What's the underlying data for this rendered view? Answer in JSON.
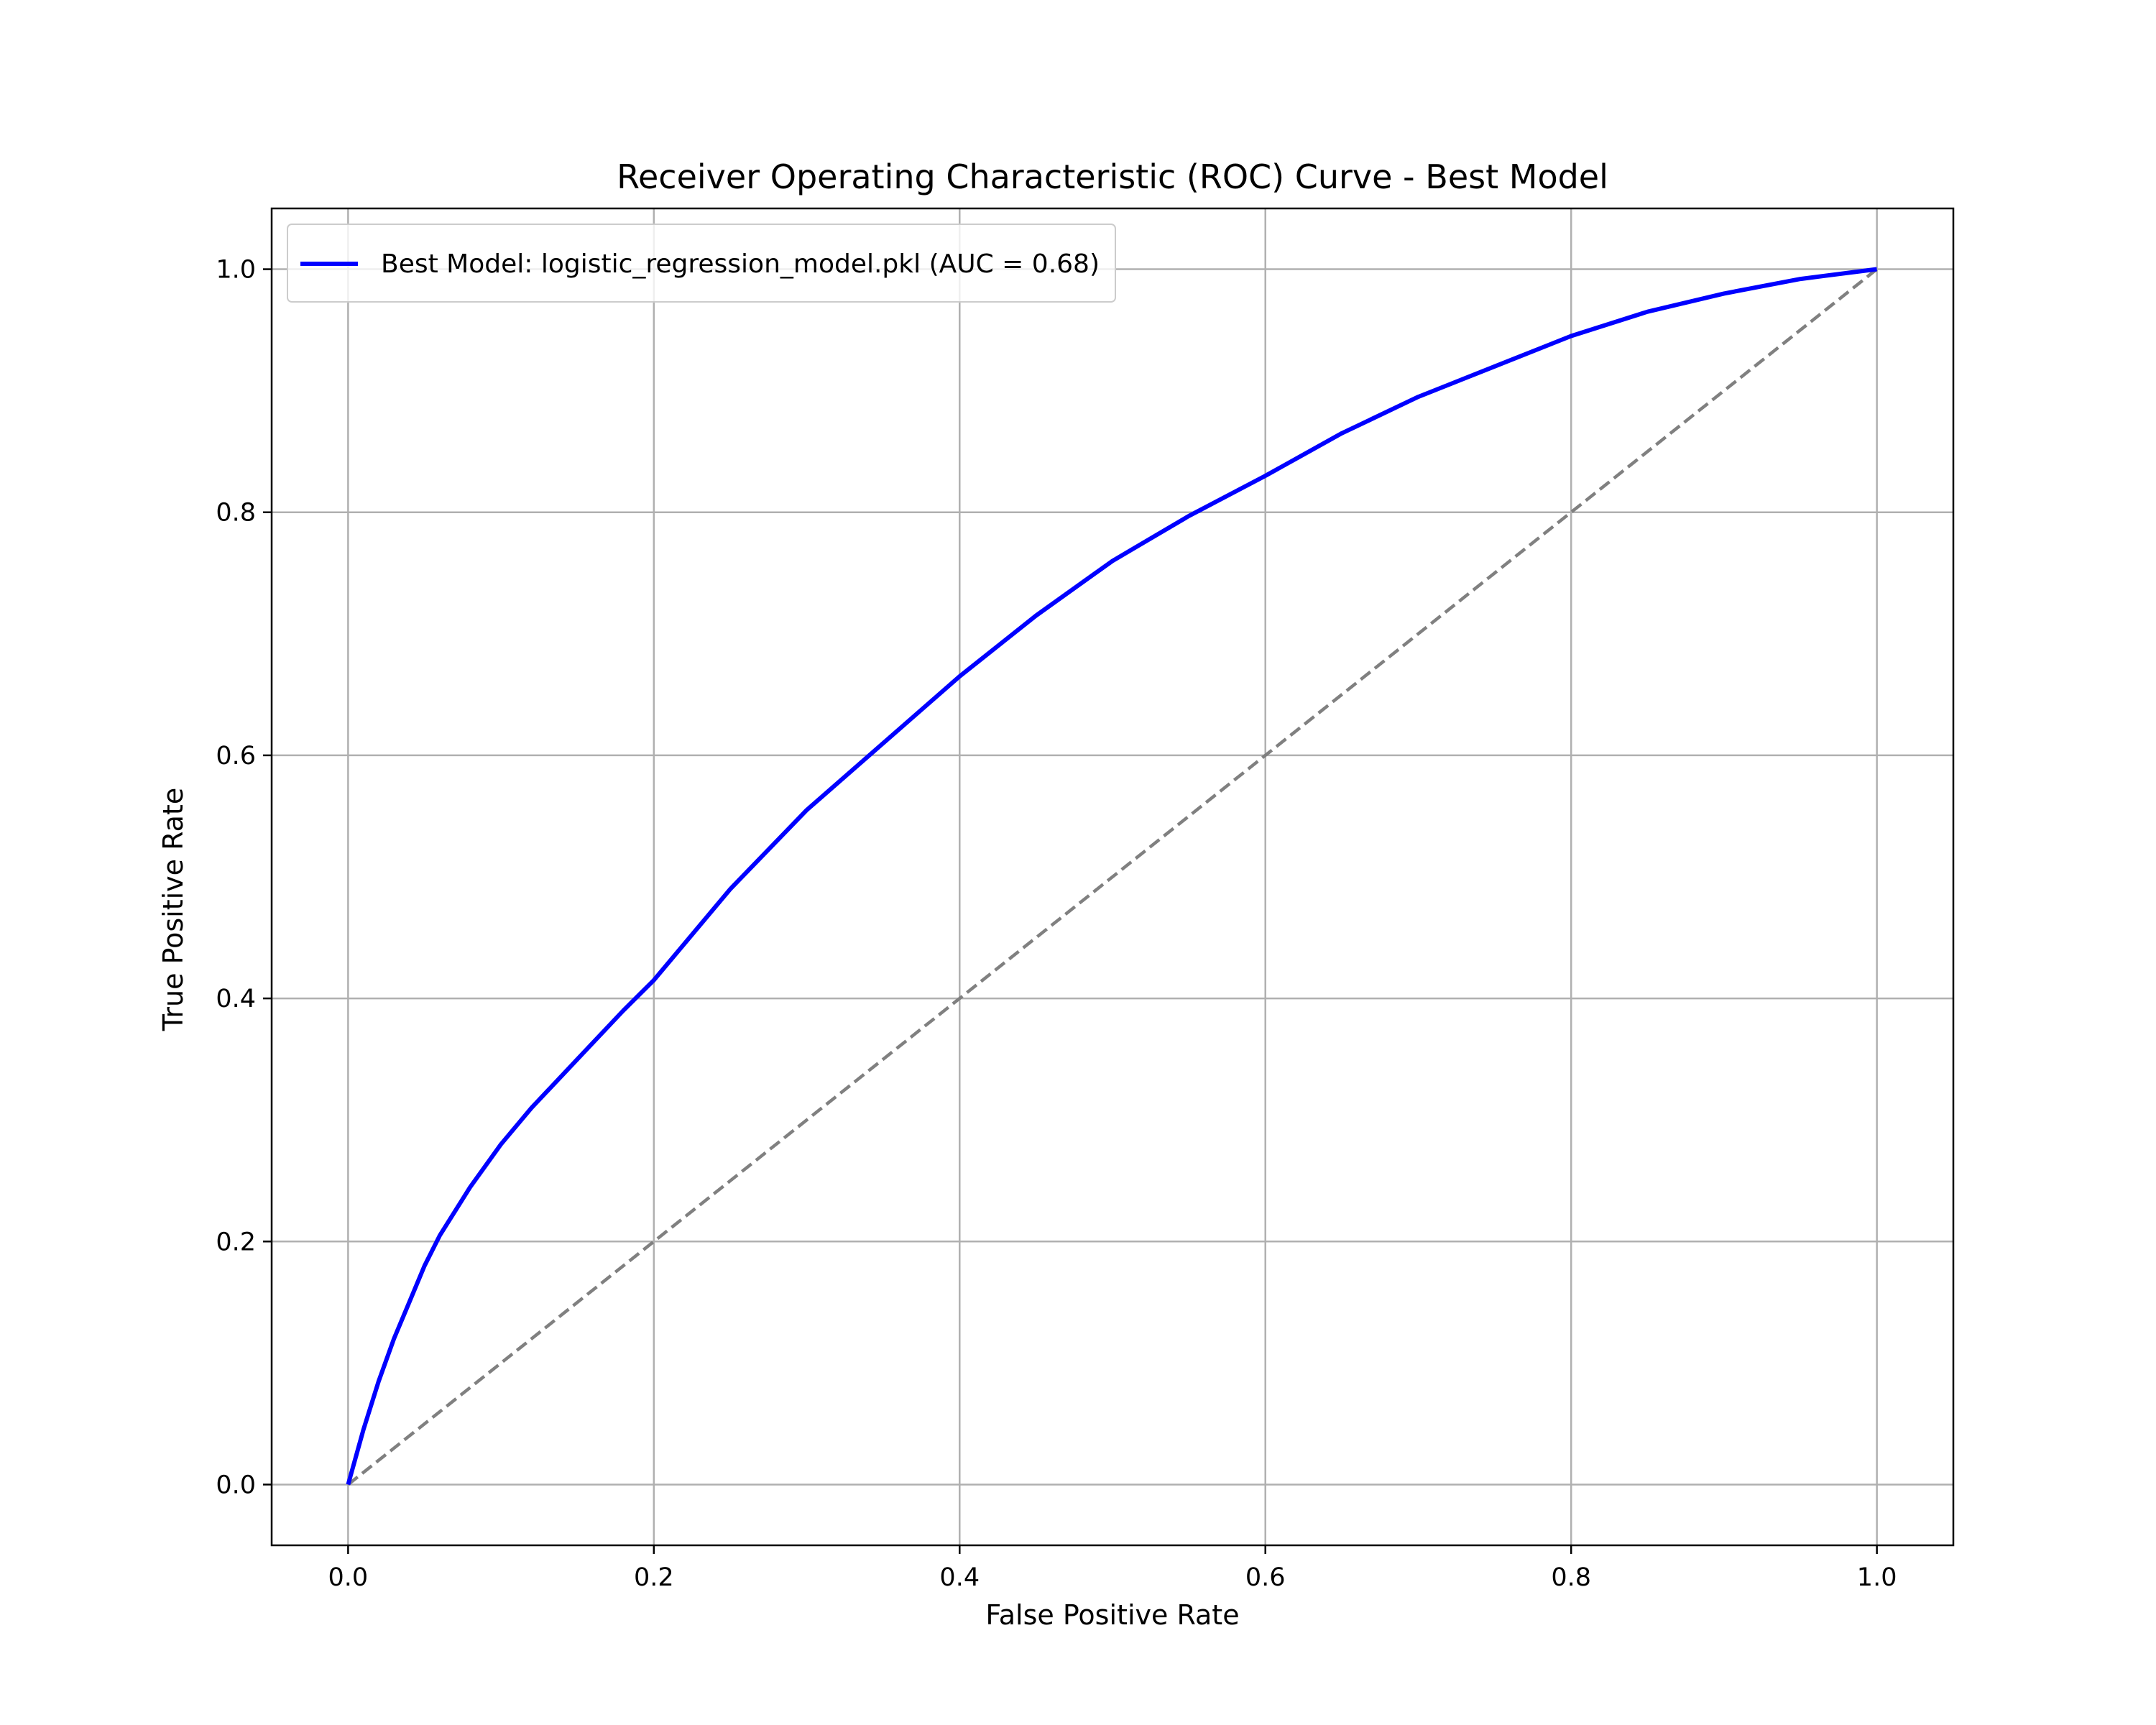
{
  "chart_data": {
    "type": "line",
    "title": "Receiver Operating Characteristic (ROC) Curve - Best Model",
    "xlabel": "False Positive Rate",
    "ylabel": "True Positive Rate",
    "xlim": [
      -0.05,
      1.05
    ],
    "ylim": [
      -0.05,
      1.05
    ],
    "grid": true,
    "legend_position": "upper-left",
    "x_ticks": [
      "0.0",
      "0.2",
      "0.4",
      "0.6",
      "0.8",
      "1.0"
    ],
    "y_ticks": [
      "0.0",
      "0.2",
      "0.4",
      "0.6",
      "0.8",
      "1.0"
    ],
    "series": [
      {
        "name": "Best Model: logistic_regression_model.pkl (AUC = 0.68)",
        "color": "#0000ff",
        "style": "solid",
        "x": [
          0.0,
          0.01,
          0.02,
          0.03,
          0.04,
          0.05,
          0.06,
          0.08,
          0.1,
          0.12,
          0.15,
          0.18,
          0.2,
          0.25,
          0.3,
          0.35,
          0.4,
          0.45,
          0.5,
          0.55,
          0.6,
          0.65,
          0.7,
          0.75,
          0.8,
          0.85,
          0.9,
          0.95,
          1.0
        ],
        "y": [
          0.0,
          0.045,
          0.085,
          0.12,
          0.15,
          0.18,
          0.205,
          0.245,
          0.28,
          0.31,
          0.35,
          0.39,
          0.415,
          0.49,
          0.555,
          0.61,
          0.665,
          0.715,
          0.76,
          0.797,
          0.83,
          0.865,
          0.895,
          0.92,
          0.945,
          0.965,
          0.98,
          0.992,
          1.0
        ]
      },
      {
        "color": "#808080",
        "style": "dashed",
        "x": [
          0.0,
          1.0
        ],
        "y": [
          0.0,
          1.0
        ]
      }
    ]
  }
}
